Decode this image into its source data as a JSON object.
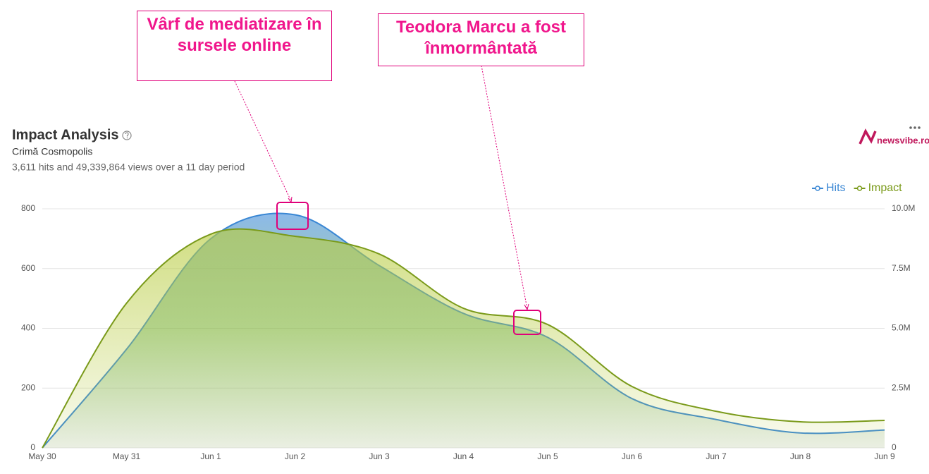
{
  "chart_data": {
    "type": "area",
    "title": "Impact Analysis",
    "subtitle": "Crimă Cosmopolis",
    "summary": "3,611 hits and 49,339,864 views over a 11 day period",
    "brand": "newsvibe.ro",
    "annotations": [
      {
        "text": "Vârf de mediatizare în sursele online"
      },
      {
        "text": "Teodora Marcu a fost înmormântată"
      }
    ],
    "categories": [
      "May 30",
      "May 31",
      "Jun 1",
      "Jun 2",
      "Jun 3",
      "Jun 4",
      "Jun 5",
      "Jun 6",
      "Jun 7",
      "Jun 8",
      "Jun 9"
    ],
    "series": [
      {
        "name": "Hits",
        "color": "#3a87d4",
        "values": [
          0,
          330,
          700,
          780,
          610,
          450,
          370,
          165,
          95,
          50,
          60
        ]
      },
      {
        "name": "Impact",
        "color": "#7a9a1a",
        "axis": "y2",
        "values": [
          0,
          6050000,
          8940000,
          8850000,
          8110000,
          5840000,
          5160000,
          2570000,
          1530000,
          1090000,
          1150000
        ]
      }
    ],
    "ylim": [
      0,
      800
    ],
    "yticks": [
      0,
      200,
      400,
      600,
      800
    ],
    "y2lim": [
      0,
      10000000
    ],
    "y2ticks": [
      {
        "value": 0,
        "label": "0"
      },
      {
        "value": 2500000,
        "label": "2.5M"
      },
      {
        "value": 5000000,
        "label": "5.0M"
      },
      {
        "value": 7500000,
        "label": "7.5M"
      },
      {
        "value": 10000000,
        "label": "10.0M"
      }
    ],
    "grid": true
  }
}
